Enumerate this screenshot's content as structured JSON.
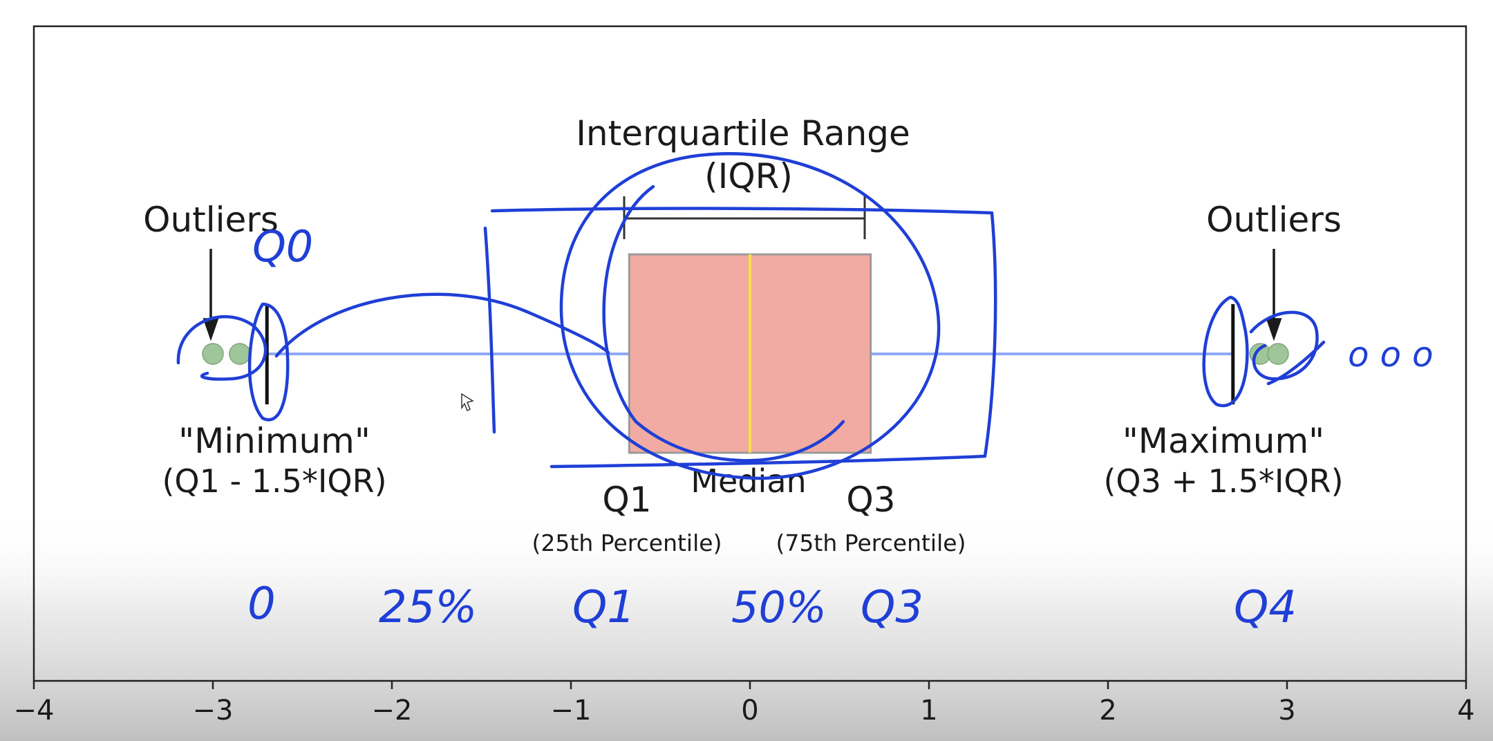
{
  "chart_data": {
    "type": "boxplot",
    "title": "",
    "xlabel": "",
    "ylabel": "",
    "xlim": [
      -4,
      4
    ],
    "x_ticks": [
      -4,
      -3,
      -2,
      -1,
      0,
      1,
      2,
      3,
      4
    ],
    "x_tick_labels": [
      "−4",
      "−3",
      "−2",
      "−1",
      "0",
      "1",
      "2",
      "3",
      "4"
    ],
    "box": {
      "q1": -0.6745,
      "median": 0,
      "q3": 0.6745,
      "whisker_low": -2.698,
      "whisker_high": 2.698,
      "fill_color": "#f2aba2",
      "median_color": "#f5e04a",
      "whisker_color": "#8fa8f5"
    },
    "outliers": [
      -3.0,
      -2.85,
      2.85,
      2.95
    ],
    "outlier_color": "#9fc59a",
    "annotations": {
      "iqr_title": "Interquartile Range",
      "iqr_sub": "(IQR)",
      "outliers_left": "Outliers",
      "outliers_right": "Outliers",
      "minimum": "\"Minimum\"",
      "minimum_formula": "(Q1 - 1.5*IQR)",
      "maximum": "\"Maximum\"",
      "maximum_formula": "(Q3 + 1.5*IQR)",
      "median": "Median",
      "q1": "Q1",
      "q3": "Q3",
      "q1_pct": "(25th Percentile)",
      "q3_pct": "(75th Percentile)"
    },
    "handwriting": {
      "q0": "Q0",
      "ooo": "o o o",
      "zero": "0",
      "pct25": "25%",
      "q1": "Q1",
      "pct50": "50%",
      "q3": "Q3",
      "q4": "Q4",
      "ink_color": "#1f3fd6"
    }
  }
}
